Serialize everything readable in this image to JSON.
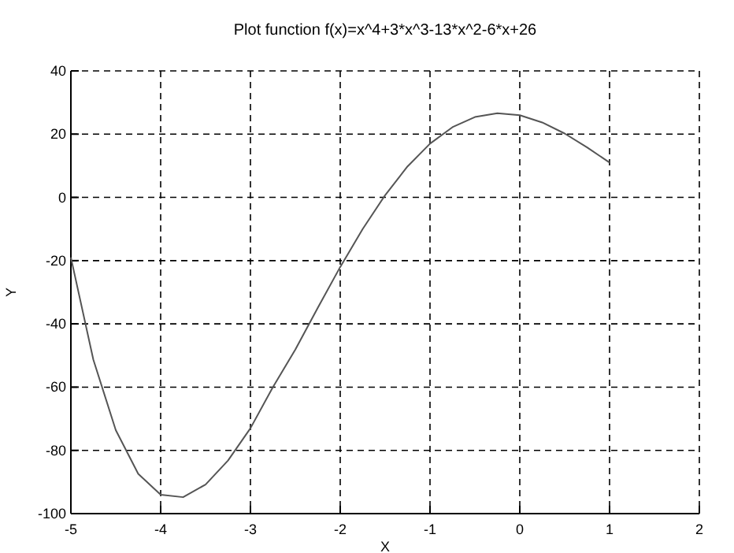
{
  "chart_data": {
    "type": "line",
    "title": "Plot function f(x)=x^4+3*x^3-13*x^2-6*x+26",
    "xlabel": "X",
    "ylabel": "Y",
    "x": [
      -5,
      -4.75,
      -4.5,
      -4.25,
      -4,
      -3.75,
      -3.5,
      -3.25,
      -3,
      -2.75,
      -2.5,
      -2.25,
      -2,
      -1.75,
      -1.5,
      -1.25,
      -1,
      -0.75,
      -0.5,
      -0.25,
      0,
      0.25,
      0.5,
      0.75,
      1
    ],
    "series": [
      {
        "color": "#555555",
        "values": [
          -19,
          -51.3,
          -73.6,
          -87.4,
          -94,
          -94.8,
          -90.8,
          -83.2,
          -73,
          -60,
          -48.1,
          -34.9,
          -22,
          -10,
          0.7,
          9.8,
          17,
          22.2,
          25.4,
          26.6,
          26,
          23.7,
          20.2,
          15.8,
          11
        ]
      }
    ],
    "xlim": [
      -5,
      2
    ],
    "xticks": [
      -5,
      -4,
      -3,
      -2,
      -1,
      0,
      1,
      2
    ],
    "ylim": [
      -100,
      40
    ],
    "yticks": [
      -100,
      -80,
      -60,
      -40,
      -20,
      0,
      20,
      40
    ],
    "grid": true,
    "line_style": "solid",
    "marker": "none"
  }
}
